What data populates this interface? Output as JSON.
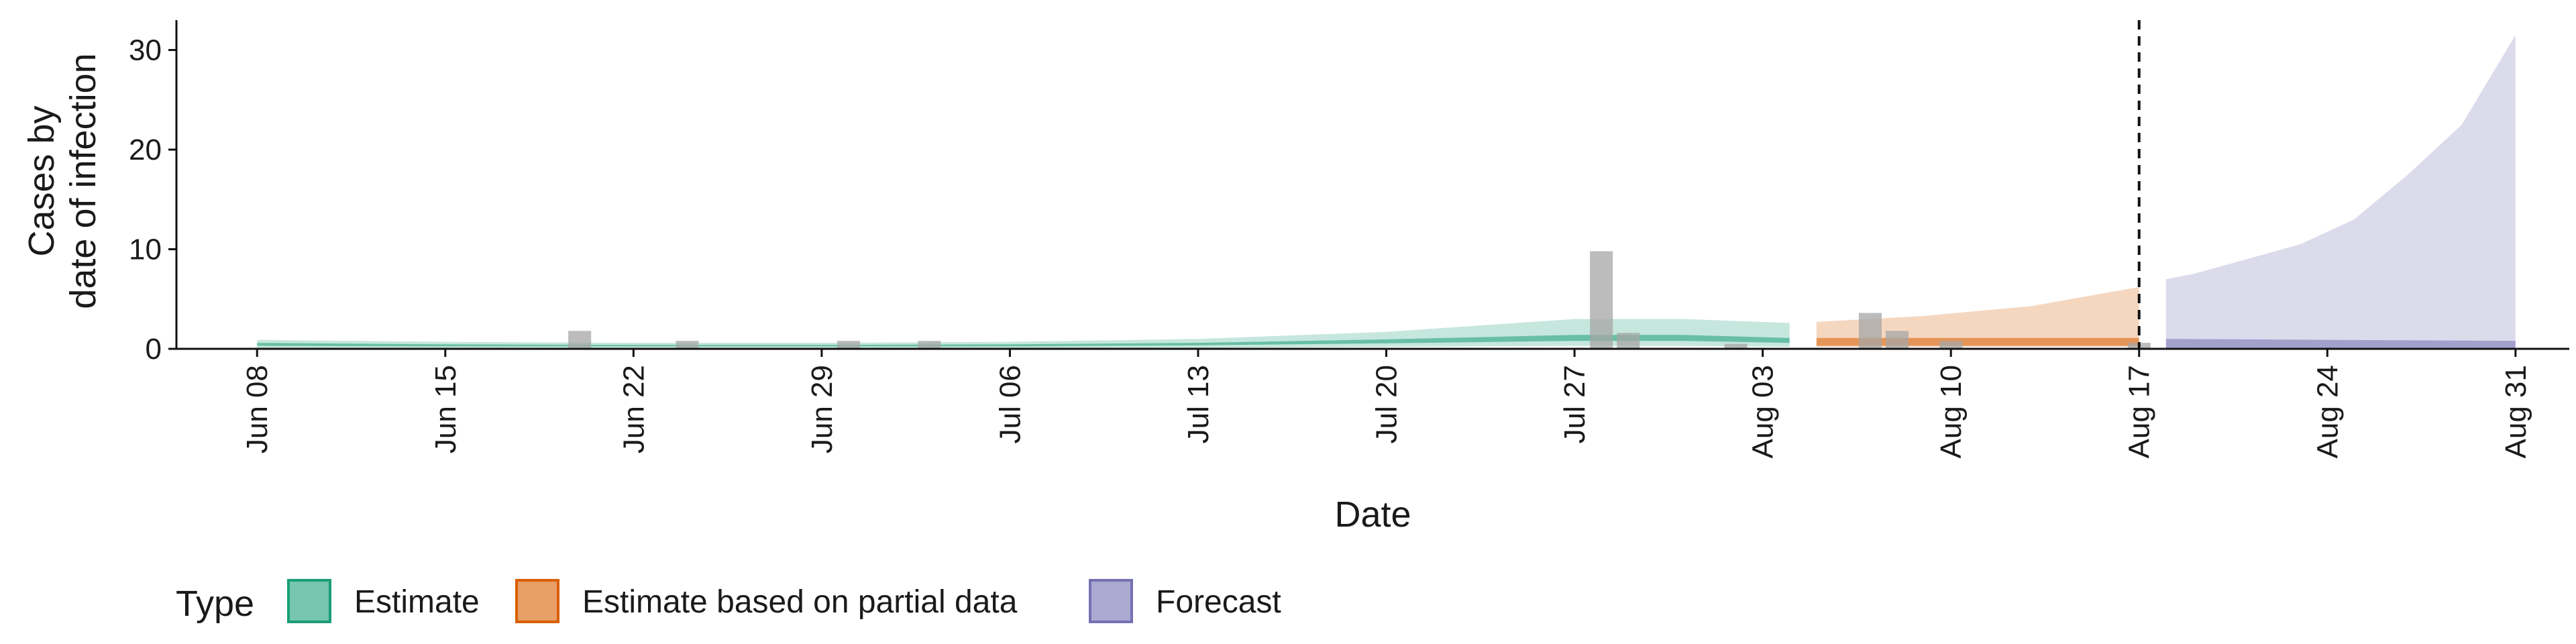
{
  "chart_data": {
    "type": "area",
    "xlabel": "Date",
    "ylabel_lines": [
      "Cases by",
      "date of infection"
    ],
    "ylim": [
      0,
      33
    ],
    "y_ticks": [
      0,
      10,
      20,
      30
    ],
    "x_range": [
      "2020-06-05",
      "2020-09-02"
    ],
    "x_ticks": [
      {
        "date": "2020-06-08",
        "label": "Jun 08"
      },
      {
        "date": "2020-06-15",
        "label": "Jun 15"
      },
      {
        "date": "2020-06-22",
        "label": "Jun 22"
      },
      {
        "date": "2020-06-29",
        "label": "Jun 29"
      },
      {
        "date": "2020-07-06",
        "label": "Jul 06"
      },
      {
        "date": "2020-07-13",
        "label": "Jul 13"
      },
      {
        "date": "2020-07-20",
        "label": "Jul 20"
      },
      {
        "date": "2020-07-27",
        "label": "Jul 27"
      },
      {
        "date": "2020-08-03",
        "label": "Aug 03"
      },
      {
        "date": "2020-08-10",
        "label": "Aug 10"
      },
      {
        "date": "2020-08-17",
        "label": "Aug 17"
      },
      {
        "date": "2020-08-24",
        "label": "Aug 24"
      },
      {
        "date": "2020-08-31",
        "label": "Aug 31"
      }
    ],
    "vline_date": "2020-08-17",
    "series": [
      {
        "name": "Estimate",
        "color": "#1b9e77",
        "outer": [
          {
            "date": "2020-06-08",
            "lo": 0.05,
            "hi": 0.9
          },
          {
            "date": "2020-06-15",
            "lo": 0.05,
            "hi": 0.7
          },
          {
            "date": "2020-06-22",
            "lo": 0.05,
            "hi": 0.6
          },
          {
            "date": "2020-06-29",
            "lo": 0.05,
            "hi": 0.6
          },
          {
            "date": "2020-07-06",
            "lo": 0.05,
            "hi": 0.7
          },
          {
            "date": "2020-07-13",
            "lo": 0.1,
            "hi": 1.0
          },
          {
            "date": "2020-07-20",
            "lo": 0.2,
            "hi": 1.7
          },
          {
            "date": "2020-07-27",
            "lo": 0.3,
            "hi": 3.0
          },
          {
            "date": "2020-07-31",
            "lo": 0.3,
            "hi": 3.0
          },
          {
            "date": "2020-08-04",
            "lo": 0.2,
            "hi": 2.6
          }
        ],
        "inner": [
          {
            "date": "2020-06-08",
            "lo": 0.3,
            "hi": 0.6
          },
          {
            "date": "2020-06-15",
            "lo": 0.25,
            "hi": 0.45
          },
          {
            "date": "2020-06-22",
            "lo": 0.25,
            "hi": 0.4
          },
          {
            "date": "2020-06-29",
            "lo": 0.25,
            "hi": 0.4
          },
          {
            "date": "2020-07-06",
            "lo": 0.25,
            "hi": 0.45
          },
          {
            "date": "2020-07-13",
            "lo": 0.35,
            "hi": 0.6
          },
          {
            "date": "2020-07-20",
            "lo": 0.55,
            "hi": 0.95
          },
          {
            "date": "2020-07-27",
            "lo": 0.8,
            "hi": 1.4
          },
          {
            "date": "2020-07-31",
            "lo": 0.8,
            "hi": 1.4
          },
          {
            "date": "2020-08-04",
            "lo": 0.6,
            "hi": 1.1
          }
        ]
      },
      {
        "name": "Estimate based on partial data",
        "color": "#d95f02",
        "outer": [
          {
            "date": "2020-08-05",
            "lo": 0.2,
            "hi": 2.7
          },
          {
            "date": "2020-08-09",
            "lo": 0.2,
            "hi": 3.3
          },
          {
            "date": "2020-08-13",
            "lo": 0.2,
            "hi": 4.3
          },
          {
            "date": "2020-08-17",
            "lo": 0.2,
            "hi": 6.2
          }
        ],
        "inner": [
          {
            "date": "2020-08-05",
            "lo": 0.3,
            "hi": 1.1
          },
          {
            "date": "2020-08-09",
            "lo": 0.3,
            "hi": 1.1
          },
          {
            "date": "2020-08-13",
            "lo": 0.3,
            "hi": 1.1
          },
          {
            "date": "2020-08-17",
            "lo": 0.3,
            "hi": 1.1
          }
        ]
      },
      {
        "name": "Forecast",
        "color": "#7570b3",
        "outer": [
          {
            "date": "2020-08-18",
            "lo": 0.0,
            "hi": 7.0
          },
          {
            "date": "2020-08-19",
            "lo": 0.0,
            "hi": 7.5
          },
          {
            "date": "2020-08-21",
            "lo": 0.0,
            "hi": 9.0
          },
          {
            "date": "2020-08-23",
            "lo": 0.0,
            "hi": 10.5
          },
          {
            "date": "2020-08-25",
            "lo": 0.0,
            "hi": 13.0
          },
          {
            "date": "2020-08-27",
            "lo": 0.0,
            "hi": 17.5
          },
          {
            "date": "2020-08-29",
            "lo": 0.0,
            "hi": 22.5
          },
          {
            "date": "2020-08-31",
            "lo": 0.0,
            "hi": 31.5
          }
        ],
        "inner": [
          {
            "date": "2020-08-18",
            "lo": 0.0,
            "hi": 1.0
          },
          {
            "date": "2020-08-24",
            "lo": 0.0,
            "hi": 0.9
          },
          {
            "date": "2020-08-31",
            "lo": 0.0,
            "hi": 0.8
          }
        ]
      }
    ],
    "reported_cases": [
      {
        "date": "2020-06-20",
        "value": 1.8
      },
      {
        "date": "2020-06-24",
        "value": 0.8
      },
      {
        "date": "2020-06-30",
        "value": 0.8
      },
      {
        "date": "2020-07-03",
        "value": 0.8
      },
      {
        "date": "2020-07-28",
        "value": 9.8
      },
      {
        "date": "2020-07-29",
        "value": 1.6
      },
      {
        "date": "2020-08-02",
        "value": 0.5
      },
      {
        "date": "2020-08-07",
        "value": 3.6
      },
      {
        "date": "2020-08-08",
        "value": 1.8
      },
      {
        "date": "2020-08-10",
        "value": 0.8
      },
      {
        "date": "2020-08-17",
        "value": 0.6
      }
    ],
    "bar_color": "#a6a6a6",
    "legend": {
      "title": "Type",
      "placement": "bottom-left",
      "items": [
        "Estimate",
        "Estimate based on partial data",
        "Forecast"
      ],
      "colors": [
        "#1b9e77",
        "#d95f02",
        "#7570b3"
      ]
    }
  }
}
